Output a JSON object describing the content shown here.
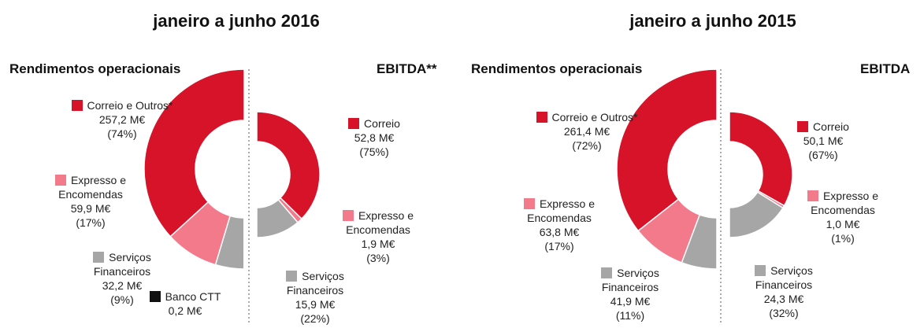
{
  "period_titles": [
    "janeiro a junho 2016",
    "janeiro a junho 2015"
  ],
  "chart_data": [
    {
      "type": "half-donut",
      "title": "Rendimentos operacionais",
      "categories": [
        "Correio e Outros*",
        "Expresso e Encomendas",
        "Serviços Financeiros",
        "Banco CTT"
      ],
      "values": [
        257.2,
        59.9,
        32.2,
        0.2
      ],
      "value_labels": [
        "257,2 M€",
        "59,9 M€",
        "32,2 M€",
        "0,2 M€"
      ],
      "percent_labels": [
        "(74%)",
        "(17%)",
        "(9%)",
        null
      ],
      "colors": [
        "#d7132a",
        "#f27a8b",
        "#a6a6a6",
        "#111111"
      ]
    },
    {
      "type": "half-donut",
      "title": "EBITDA**",
      "categories": [
        "Correio",
        "Expresso e Encomendas",
        "Serviços Financeiros"
      ],
      "values": [
        52.8,
        1.9,
        15.9
      ],
      "value_labels": [
        "52,8 M€",
        "1,9 M€",
        "15,9 M€"
      ],
      "percent_labels": [
        "(75%)",
        "(3%)",
        "(22%)"
      ],
      "colors": [
        "#d7132a",
        "#f27a8b",
        "#a6a6a6"
      ]
    },
    {
      "type": "half-donut",
      "title": "Rendimentos operacionais",
      "categories": [
        "Correio e Outros*",
        "Expresso e Encomendas",
        "Serviços Financeiros"
      ],
      "values": [
        261.4,
        63.8,
        41.9
      ],
      "value_labels": [
        "261,4 M€",
        "63,8 M€",
        "41,9 M€"
      ],
      "percent_labels": [
        "(72%)",
        "(17%)",
        "(11%)"
      ],
      "colors": [
        "#d7132a",
        "#f27a8b",
        "#a6a6a6"
      ]
    },
    {
      "type": "half-donut",
      "title": "EBITDA",
      "categories": [
        "Correio",
        "Expresso e Encomendas",
        "Serviços Financeiros"
      ],
      "values": [
        50.1,
        1.0,
        24.3
      ],
      "value_labels": [
        "50,1 M€",
        "1,0 M€",
        "24,3 M€"
      ],
      "percent_labels": [
        "(67%)",
        "(1%)",
        "(32%)"
      ],
      "colors": [
        "#d7132a",
        "#f27a8b",
        "#a6a6a6"
      ]
    }
  ]
}
